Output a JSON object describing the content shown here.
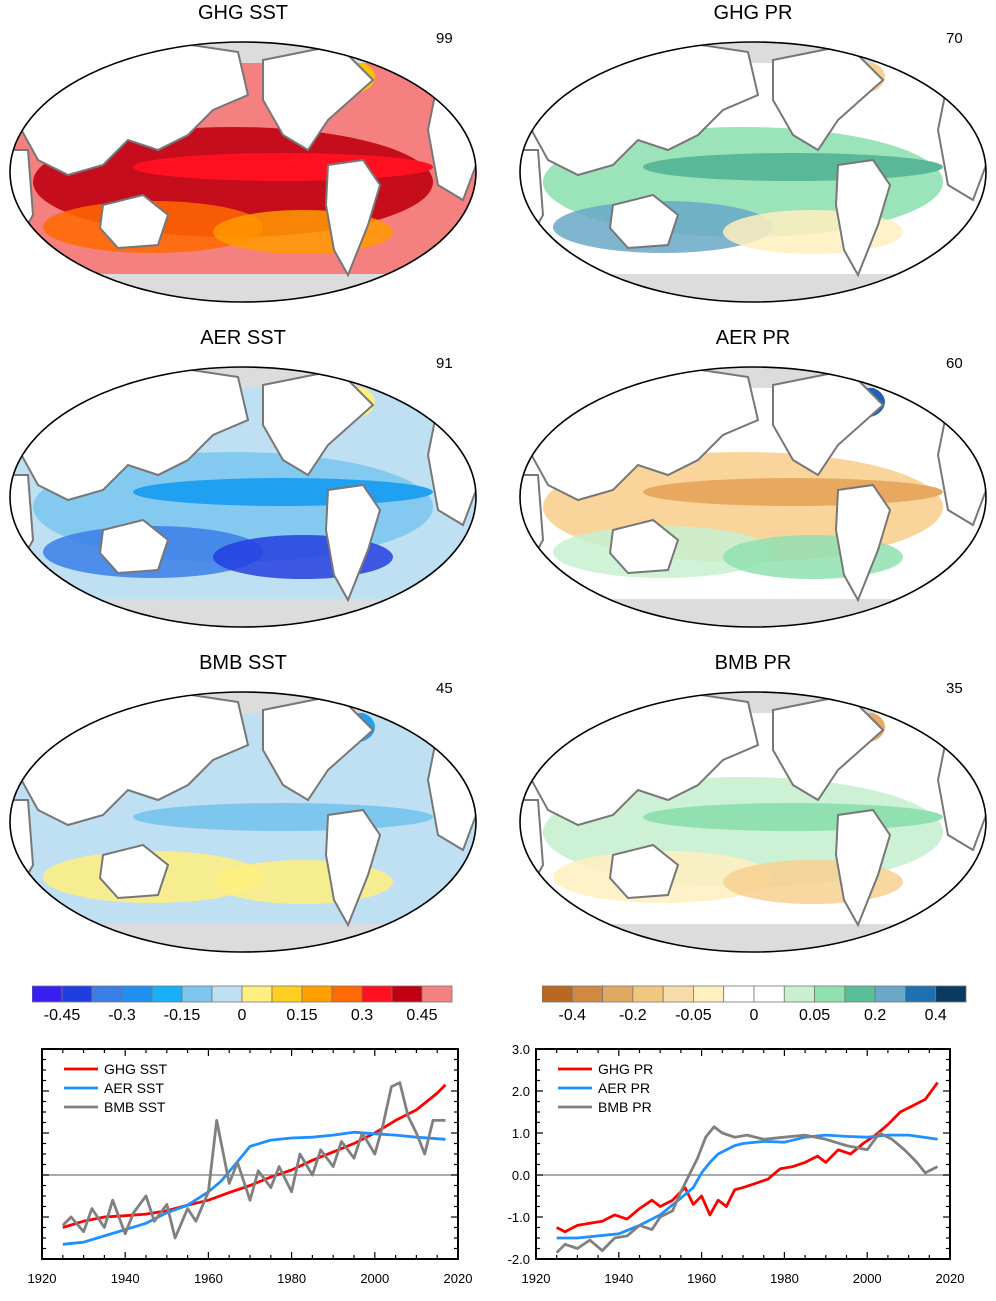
{
  "maps": [
    {
      "title": "GHG SST",
      "number": "99",
      "kind": "sst",
      "palette": [
        "#f48080",
        "#c00010",
        "#ff1020",
        "#ff6a00",
        "#ff9a00",
        "#ffc000"
      ]
    },
    {
      "title": "GHG PR",
      "number": "70",
      "kind": "pr",
      "palette": [
        "#c8f0d0",
        "#90e0b0",
        "#58b898",
        "#6aa8c8",
        "#fff0c0",
        "#f8d090"
      ]
    },
    {
      "title": "AER SST",
      "number": "91",
      "kind": "sst",
      "palette": [
        "#bfe0f2",
        "#7dc6ee",
        "#20a0f0",
        "#3a7ee8",
        "#2540e0",
        "#ffee80"
      ]
    },
    {
      "title": "AER PR",
      "number": "60",
      "kind": "pr",
      "palette": [
        "#fff0c0",
        "#f8d090",
        "#e8a860",
        "#c8f0d0",
        "#90e0b0",
        "#2060b0"
      ]
    },
    {
      "title": "BMB SST",
      "number": "45",
      "kind": "sst",
      "palette": [
        "#bfe0f2",
        "#bfe0f2",
        "#7dc6ee",
        "#ffee80",
        "#ffee80",
        "#20a0f0"
      ]
    },
    {
      "title": "BMB PR",
      "number": "35",
      "kind": "pr",
      "palette": [
        "#ffffff",
        "#c8f0d0",
        "#90e0b0",
        "#fff0c0",
        "#f8d090",
        "#e8a860"
      ]
    }
  ],
  "colorbars": [
    {
      "colors": [
        "#3a1ef0",
        "#1e3ee0",
        "#3a7ee8",
        "#2090f0",
        "#18b0f8",
        "#7dc6ee",
        "#bfe0f2",
        "#ffee80",
        "#ffcf20",
        "#ffa000",
        "#ff6a00",
        "#ff1020",
        "#c00010",
        "#f48080"
      ],
      "labels": [
        "-0.45",
        "-0.3",
        "-0.15",
        "0",
        "0.15",
        "0.3",
        "0.45"
      ]
    },
    {
      "colors": [
        "#b86820",
        "#d08a40",
        "#e0a860",
        "#f0c880",
        "#f8dca8",
        "#fff0c0",
        "#ffffff",
        "#ffffff",
        "#c8f0d0",
        "#90e0b0",
        "#58c098",
        "#6aa8c8",
        "#1e70b0",
        "#0a3a60"
      ],
      "labels": [
        "-0.4",
        "-0.2",
        "-0.05",
        "0",
        "0.05",
        "0.2",
        "0.4"
      ]
    }
  ],
  "chart_data": [
    {
      "type": "line",
      "title": "",
      "xlabel": "",
      "ylabel": "",
      "xlim": [
        1920,
        2020
      ],
      "ylim": [
        -2.0,
        3.0
      ],
      "xticks": [
        "1920",
        "1940",
        "1960",
        "1980",
        "2000",
        "2020"
      ],
      "yticks": [],
      "legend": "top-left",
      "series": [
        {
          "name": "GHG SST",
          "color": "#ff0000",
          "x": [
            1925,
            1930,
            1935,
            1940,
            1945,
            1950,
            1955,
            1960,
            1965,
            1970,
            1975,
            1980,
            1985,
            1990,
            1995,
            2000,
            2005,
            2010,
            2015,
            2017
          ],
          "values": [
            -1.25,
            -1.1,
            -1.0,
            -0.97,
            -0.93,
            -0.85,
            -0.72,
            -0.6,
            -0.42,
            -0.25,
            -0.05,
            0.12,
            0.35,
            0.55,
            0.75,
            1.0,
            1.3,
            1.55,
            1.95,
            2.15
          ]
        },
        {
          "name": "AER SST",
          "color": "#1e90ff",
          "x": [
            1925,
            1930,
            1935,
            1940,
            1945,
            1950,
            1955,
            1960,
            1963,
            1966,
            1970,
            1975,
            1980,
            1985,
            1990,
            1995,
            2000,
            2005,
            2010,
            2017
          ],
          "values": [
            -1.65,
            -1.6,
            -1.45,
            -1.3,
            -1.15,
            -0.9,
            -0.72,
            -0.4,
            -0.15,
            0.2,
            0.68,
            0.83,
            0.88,
            0.9,
            0.95,
            1.02,
            0.98,
            0.95,
            0.9,
            0.85
          ]
        },
        {
          "name": "BMB SST",
          "color": "#808080",
          "x": [
            1925,
            1927,
            1930,
            1932,
            1935,
            1937,
            1940,
            1942,
            1945,
            1947,
            1950,
            1952,
            1955,
            1957,
            1960,
            1962,
            1965,
            1967,
            1970,
            1972,
            1975,
            1977,
            1980,
            1982,
            1985,
            1987,
            1990,
            1992,
            1995,
            1997,
            2000,
            2002,
            2004,
            2006,
            2008,
            2010,
            2012,
            2014,
            2017
          ],
          "values": [
            -1.2,
            -1.0,
            -1.35,
            -0.8,
            -1.25,
            -0.6,
            -1.4,
            -0.9,
            -0.5,
            -1.1,
            -0.7,
            -1.5,
            -0.8,
            -1.1,
            -0.4,
            1.3,
            -0.2,
            0.3,
            -0.6,
            0.1,
            -0.3,
            0.2,
            -0.4,
            0.5,
            0.0,
            0.6,
            0.2,
            0.8,
            0.4,
            1.0,
            0.5,
            1.2,
            2.1,
            2.2,
            1.4,
            1.0,
            0.5,
            1.3,
            1.3
          ]
        }
      ]
    },
    {
      "type": "line",
      "title": "",
      "xlabel": "",
      "ylabel": "",
      "xlim": [
        1920,
        2020
      ],
      "ylim": [
        -2.0,
        3.0
      ],
      "xticks": [
        "1920",
        "1940",
        "1960",
        "1980",
        "2000",
        "2020"
      ],
      "yticks": [
        "-2.0",
        "-1.0",
        "0.0",
        "1.0",
        "2.0",
        "3.0"
      ],
      "legend": "top-left",
      "series": [
        {
          "name": "GHG PR",
          "color": "#ff0000",
          "x": [
            1925,
            1927,
            1930,
            1933,
            1936,
            1939,
            1942,
            1945,
            1948,
            1950,
            1953,
            1956,
            1958,
            1960,
            1962,
            1964,
            1966,
            1968,
            1970,
            1973,
            1976,
            1979,
            1982,
            1985,
            1988,
            1990,
            1993,
            1996,
            1999,
            2002,
            2005,
            2008,
            2011,
            2014,
            2017
          ],
          "values": [
            -1.25,
            -1.35,
            -1.2,
            -1.15,
            -1.1,
            -0.95,
            -1.05,
            -0.8,
            -0.6,
            -0.75,
            -0.6,
            -0.3,
            -0.7,
            -0.5,
            -0.95,
            -0.6,
            -0.75,
            -0.35,
            -0.3,
            -0.2,
            -0.1,
            0.15,
            0.2,
            0.3,
            0.45,
            0.3,
            0.6,
            0.5,
            0.75,
            0.95,
            1.2,
            1.5,
            1.65,
            1.8,
            2.2
          ]
        },
        {
          "name": "AER PR",
          "color": "#1e90ff",
          "x": [
            1925,
            1930,
            1935,
            1940,
            1945,
            1950,
            1955,
            1958,
            1960,
            1962,
            1964,
            1966,
            1968,
            1970,
            1975,
            1980,
            1985,
            1990,
            1995,
            2000,
            2005,
            2010,
            2015,
            2017
          ],
          "values": [
            -1.5,
            -1.5,
            -1.45,
            -1.4,
            -1.2,
            -0.95,
            -0.55,
            -0.3,
            0.05,
            0.3,
            0.5,
            0.6,
            0.7,
            0.75,
            0.8,
            0.78,
            0.9,
            0.95,
            0.92,
            0.9,
            0.95,
            0.95,
            0.88,
            0.85
          ]
        },
        {
          "name": "BMB PR",
          "color": "#808080",
          "x": [
            1925,
            1927,
            1930,
            1933,
            1936,
            1939,
            1942,
            1945,
            1948,
            1950,
            1953,
            1955,
            1957,
            1959,
            1961,
            1963,
            1965,
            1968,
            1971,
            1975,
            1980,
            1985,
            1990,
            1995,
            2000,
            2003,
            2006,
            2009,
            2012,
            2014,
            2017
          ],
          "values": [
            -1.85,
            -1.65,
            -1.75,
            -1.55,
            -1.8,
            -1.5,
            -1.45,
            -1.2,
            -1.3,
            -1.0,
            -0.85,
            -0.4,
            0.0,
            0.4,
            0.9,
            1.15,
            1.0,
            0.9,
            0.95,
            0.85,
            0.9,
            0.95,
            0.85,
            0.7,
            0.6,
            1.0,
            0.85,
            0.6,
            0.3,
            0.05,
            0.2
          ]
        }
      ]
    }
  ]
}
